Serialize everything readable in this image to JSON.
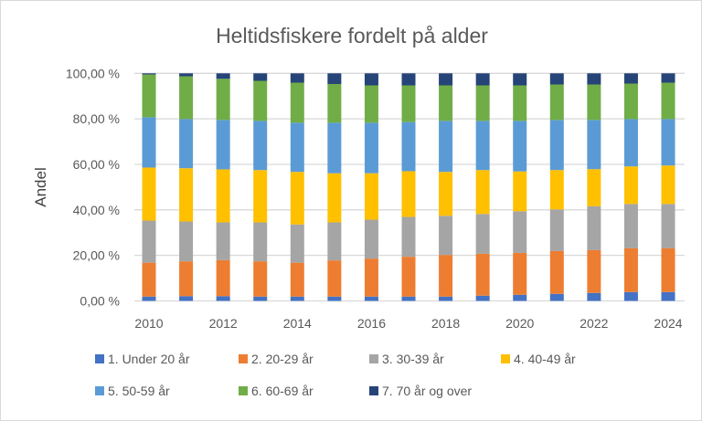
{
  "chart_data": {
    "type": "bar",
    "stacked": true,
    "title": "Heltidsfiskere fordelt på alder",
    "xlabel": "",
    "ylabel": "Andel",
    "ylim": [
      0,
      100
    ],
    "yticks": [
      "0,00 %",
      "20,00 %",
      "40,00 %",
      "60,00 %",
      "80,00 %",
      "100,00 %"
    ],
    "xtick_labels": [
      "2010",
      "2012",
      "2014",
      "2016",
      "2018",
      "2020",
      "2022",
      "2024"
    ],
    "grid": true,
    "legend_position": "bottom",
    "categories": [
      "2010",
      "2011",
      "2012",
      "2013",
      "2014",
      "2015",
      "2016",
      "2017",
      "2018",
      "2019",
      "2020",
      "2021",
      "2022",
      "2023",
      "2024"
    ],
    "series": [
      {
        "name": "1. Under 20 år",
        "color": "#4472c4",
        "values": [
          1.9,
          2.1,
          2.1,
          1.9,
          1.9,
          1.9,
          1.9,
          1.9,
          1.9,
          2.3,
          2.7,
          3.1,
          3.5,
          3.9,
          3.9
        ]
      },
      {
        "name": "2. 20-29 år",
        "color": "#ed7d31",
        "values": [
          14.9,
          15.3,
          15.8,
          15.5,
          14.9,
          15.9,
          16.7,
          17.5,
          18.3,
          18.4,
          18.4,
          18.8,
          18.8,
          19.2,
          19.2
        ]
      },
      {
        "name": "3. 30-39 år",
        "color": "#a5a5a5",
        "values": [
          18.5,
          17.5,
          16.6,
          17.1,
          16.8,
          16.7,
          17.1,
          17.5,
          17.2,
          17.5,
          18.3,
          18.3,
          19.3,
          19.5,
          19.5
        ]
      },
      {
        "name": "4. 40-49 år",
        "color": "#ffc000",
        "values": [
          23.3,
          23.4,
          23.3,
          23.0,
          23.1,
          21.6,
          20.4,
          20.1,
          19.3,
          19.3,
          17.5,
          17.3,
          16.3,
          16.5,
          16.9
        ]
      },
      {
        "name": "5. 50-59 år",
        "color": "#5b9bd5",
        "values": [
          22.1,
          21.6,
          21.7,
          21.6,
          21.6,
          22.2,
          22.2,
          21.6,
          22.4,
          21.6,
          22.2,
          22.0,
          21.6,
          20.8,
          20.4
        ]
      },
      {
        "name": "6. 60-69 år",
        "color": "#70ad47",
        "values": [
          18.8,
          18.8,
          18.1,
          17.6,
          17.6,
          17.0,
          16.4,
          16.1,
          15.6,
          15.6,
          15.6,
          15.6,
          15.6,
          15.6,
          16.0
        ]
      },
      {
        "name": "7. 70 år og over",
        "color": "#264478",
        "values": [
          0.5,
          1.3,
          2.4,
          3.3,
          4.1,
          4.7,
          5.3,
          5.3,
          5.3,
          5.3,
          5.3,
          4.9,
          4.9,
          4.5,
          4.1
        ]
      }
    ]
  }
}
